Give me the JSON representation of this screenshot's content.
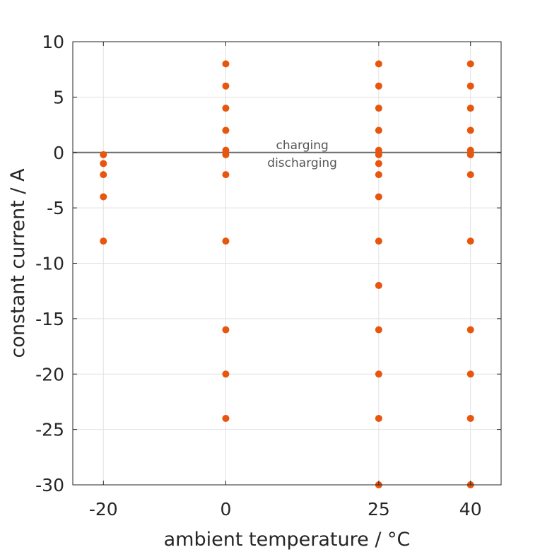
{
  "chart_data": {
    "type": "scatter",
    "xlabel": "ambient temperature / °C",
    "ylabel": "constant current / A",
    "xlim": [
      -25,
      45
    ],
    "ylim": [
      -30,
      10
    ],
    "xticks": [
      -20,
      0,
      25,
      40
    ],
    "yticks": [
      10,
      5,
      0,
      -5,
      -10,
      -15,
      -20,
      -25,
      -30
    ],
    "grid": true,
    "marker_color": "#e8560e",
    "reference_line": {
      "y": 0,
      "color": "#6b6b6b"
    },
    "annotations": [
      {
        "text": "charging",
        "x": 12.5,
        "y": 0.7
      },
      {
        "text": "discharging",
        "x": 12.5,
        "y": -0.9
      }
    ],
    "points": [
      {
        "x": -20,
        "y": -0.2
      },
      {
        "x": -20,
        "y": -1
      },
      {
        "x": -20,
        "y": -2
      },
      {
        "x": -20,
        "y": -4
      },
      {
        "x": -20,
        "y": -8
      },
      {
        "x": 0,
        "y": 8
      },
      {
        "x": 0,
        "y": 6
      },
      {
        "x": 0,
        "y": 4
      },
      {
        "x": 0,
        "y": 2
      },
      {
        "x": 0,
        "y": 0.2
      },
      {
        "x": 0,
        "y": -0.2
      },
      {
        "x": 0,
        "y": -2
      },
      {
        "x": 0,
        "y": -8
      },
      {
        "x": 0,
        "y": -16
      },
      {
        "x": 0,
        "y": -20
      },
      {
        "x": 0,
        "y": -24
      },
      {
        "x": 25,
        "y": 8
      },
      {
        "x": 25,
        "y": 6
      },
      {
        "x": 25,
        "y": 4
      },
      {
        "x": 25,
        "y": 2
      },
      {
        "x": 25,
        "y": 0.2
      },
      {
        "x": 25,
        "y": -0.2
      },
      {
        "x": 25,
        "y": -1
      },
      {
        "x": 25,
        "y": -2
      },
      {
        "x": 25,
        "y": -4
      },
      {
        "x": 25,
        "y": -8
      },
      {
        "x": 25,
        "y": -12
      },
      {
        "x": 25,
        "y": -16
      },
      {
        "x": 25,
        "y": -20
      },
      {
        "x": 25,
        "y": -24
      },
      {
        "x": 25,
        "y": -30
      },
      {
        "x": 40,
        "y": 8
      },
      {
        "x": 40,
        "y": 6
      },
      {
        "x": 40,
        "y": 4
      },
      {
        "x": 40,
        "y": 2
      },
      {
        "x": 40,
        "y": 0.2
      },
      {
        "x": 40,
        "y": -0.2
      },
      {
        "x": 40,
        "y": -2
      },
      {
        "x": 40,
        "y": -8
      },
      {
        "x": 40,
        "y": -16
      },
      {
        "x": 40,
        "y": -20
      },
      {
        "x": 40,
        "y": -24
      },
      {
        "x": 40,
        "y": -30
      }
    ]
  }
}
